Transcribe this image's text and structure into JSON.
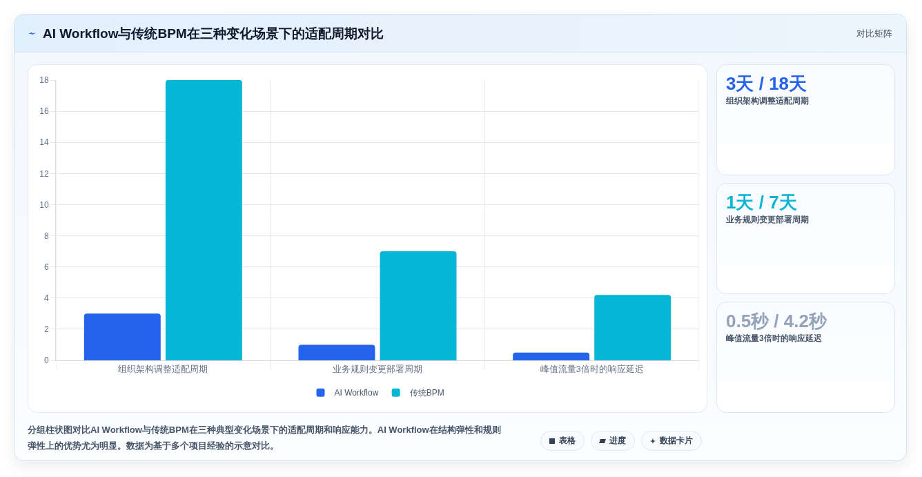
{
  "chart_data": [
    {
      "type": "bar",
      "title": "AI Workflow与传统BPM在三种变化场景下的适配周期对比",
      "categories": [
        "组织架构调整适配周期",
        "业务规则变更部署周期",
        "峰值流量3倍时的响应延迟"
      ],
      "series": [
        {
          "name": "AI Workflow",
          "color": "#2563eb",
          "values": [
            3,
            1,
            0.5
          ]
        },
        {
          "name": "传统BPM",
          "color": "#06b6d4",
          "values": [
            18,
            7,
            4.2
          ]
        }
      ],
      "ylim": [
        0,
        18
      ],
      "yticks": [
        0,
        2,
        4,
        6,
        8,
        10,
        12,
        14,
        16,
        18
      ],
      "grid": true,
      "legend": "bottom",
      "annotations": [
        "对比矩阵",
        "分组柱状图对比AI Workflow与传统BPM在三种典型变化场景下的适配周期和响应能力。AI Workflow在结构弹性和规则弹性上的优势尤为明显。数据为基于多个项目经验的示意对比。",
        "表格",
        "进度",
        "数据卡片"
      ]
    },
    {
      "type": "other",
      "title": "3天 / 18天",
      "subtitle": "组织架构调整适配周期",
      "color": "#2563eb"
    },
    {
      "type": "other",
      "title": "1天 / 7天",
      "subtitle": "业务规则变更部署周期",
      "color": "#06b6d4"
    },
    {
      "type": "other",
      "title": "0.5秒 / 4.2秒",
      "subtitle": "峰值流量3倍时的响应延迟",
      "color": "#94a3b8"
    }
  ]
}
